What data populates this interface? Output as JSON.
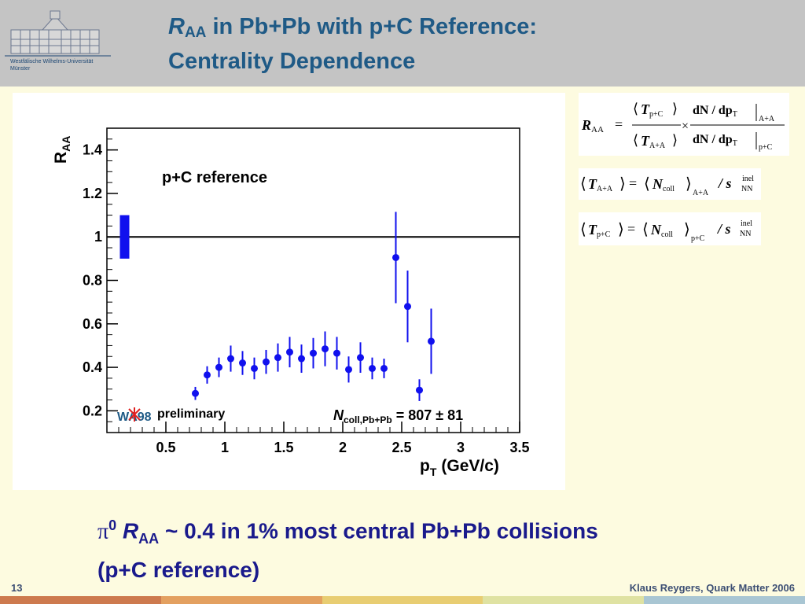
{
  "header": {
    "title_r": "R",
    "title_r_sub": "AA",
    "title_line1_rest": " in Pb+Pb with p+C Reference:",
    "title_line2": "Centrality Dependence",
    "logo_text_line1": "Westfälische Wilhelms-Universität",
    "logo_text_line2": "Münster"
  },
  "chart_data": {
    "type": "scatter",
    "title": "p+C reference",
    "ylabel_main": "R",
    "ylabel_sub": "AA",
    "xlabel_main": "p",
    "xlabel_sub": "T",
    "xlabel_unit": "(GeV/c)",
    "xlim": [
      0.0,
      3.5
    ],
    "ylim": [
      0.1,
      1.5
    ],
    "x_ticks": [
      0.5,
      1,
      1.5,
      2,
      2.5,
      3,
      3.5
    ],
    "x_tick_labels": [
      "0.5",
      "1",
      "1.5",
      "2",
      "2.5",
      "3",
      "3.5"
    ],
    "y_ticks": [
      0.2,
      0.4,
      0.6,
      0.8,
      1.0,
      1.2,
      1.4
    ],
    "y_tick_labels": [
      "0.2",
      "0.4",
      "0.6",
      "0.8",
      "1",
      "1.2",
      "1.4"
    ],
    "reference_line_y": 1.0,
    "normalization_box": {
      "x": 0.15,
      "ylow": 0.9,
      "yhigh": 1.1
    },
    "grid": false,
    "legend": "none",
    "marker_color": "#1010ee",
    "series": [
      {
        "x": [
          0.75,
          0.85,
          0.95,
          1.05,
          1.15,
          1.25,
          1.35,
          1.45,
          1.55,
          1.65,
          1.75,
          1.85,
          1.95,
          2.05,
          2.15,
          2.25,
          2.35,
          2.45,
          2.55,
          2.65,
          2.75
        ],
        "y": [
          0.28,
          0.365,
          0.4,
          0.44,
          0.42,
          0.395,
          0.425,
          0.445,
          0.47,
          0.44,
          0.465,
          0.485,
          0.465,
          0.39,
          0.445,
          0.395,
          0.395,
          0.905,
          0.68,
          0.295,
          0.52
        ],
        "err": [
          0.03,
          0.04,
          0.045,
          0.06,
          0.055,
          0.05,
          0.055,
          0.065,
          0.07,
          0.065,
          0.07,
          0.08,
          0.075,
          0.06,
          0.07,
          0.05,
          0.045,
          0.21,
          0.165,
          0.05,
          0.15
        ]
      }
    ],
    "annotation_logo": "WA98",
    "annotation_preliminary": "preliminary",
    "annotation_ncoll_n": "N",
    "annotation_ncoll_sub": "coll,Pb+Pb",
    "annotation_ncoll_value": " = 807 ± 81"
  },
  "formulas": {
    "f1": {
      "lhs": "R",
      "lhs_sub": "AA",
      "t": "T",
      "t_sub_top": "p+C",
      "t_sub_bot": "A+A",
      "dn_num": "dN / dp",
      "dn_sub": "T",
      "eval_top": "A+A",
      "eval_bot": "p+C",
      "eq": "=",
      "times": "×"
    },
    "f2": {
      "t": "T",
      "t_sub": "A+A",
      "n": "N",
      "n_sub": "coll",
      "outer_sub": "A+A",
      "slash": "/ s",
      "inel": "inel",
      "nn": "NN",
      "eq": "="
    },
    "f3": {
      "t": "T",
      "t_sub": "p+C",
      "n": "N",
      "n_sub": "coll",
      "outer_sub": "p+C",
      "slash": "/ s",
      "inel": "inel",
      "nn": "NN",
      "eq": "="
    }
  },
  "bullet": {
    "pi": "π",
    "pi_sup": "0",
    "r": "R",
    "r_sub": "AA",
    "line1_rest": " ~ 0.4 in 1% most central Pb+Pb collisions",
    "line2": "(p+C reference)"
  },
  "footer": {
    "slide_number": "13",
    "author": "Klaus Reygers, Quark Matter 2006",
    "bar_colors": [
      "#cd7a4e",
      "#e3a060",
      "#e8cd72",
      "#dfe2a2",
      "#a9c6d3"
    ]
  }
}
